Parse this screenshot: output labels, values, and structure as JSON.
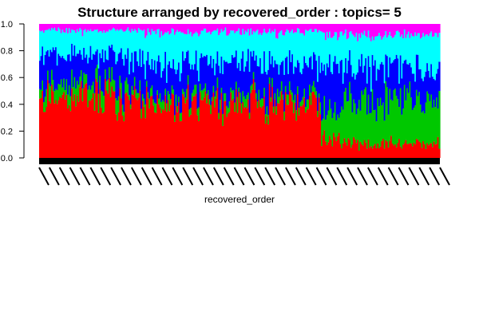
{
  "chart_data": {
    "type": "bar",
    "stacked": true,
    "title": "Structure arranged by recovered_order : topics= 5",
    "xlabel": "recovered_order",
    "ylabel": "",
    "ylim": [
      0,
      1
    ],
    "yticks": [
      "0.0",
      "0.2",
      "0.4",
      "0.6",
      "0.8",
      "1.0"
    ],
    "n_samples": 300,
    "series": [
      {
        "name": "",
        "color": "#ff0000"
      },
      {
        "name": "",
        "color": "#00c800"
      },
      {
        "name": "",
        "color": "#0000ff"
      },
      {
        "name": "",
        "color": "#00ffff"
      },
      {
        "name": "",
        "color": "#ff00ff"
      }
    ],
    "segment_profile": [
      {
        "fraction_range": [
          0.0,
          0.22
        ],
        "approx_proportions": [
          0.45,
          0.1,
          0.22,
          0.18,
          0.05
        ]
      },
      {
        "fraction_range": [
          0.22,
          0.7
        ],
        "approx_proportions": [
          0.4,
          0.06,
          0.24,
          0.24,
          0.06
        ]
      },
      {
        "fraction_range": [
          0.7,
          0.75
        ],
        "approx_proportions": [
          0.15,
          0.2,
          0.35,
          0.22,
          0.08
        ]
      },
      {
        "fraction_range": [
          0.75,
          1.0
        ],
        "approx_proportions": [
          0.1,
          0.35,
          0.22,
          0.25,
          0.08
        ]
      }
    ],
    "grid": false,
    "legend": "none"
  }
}
